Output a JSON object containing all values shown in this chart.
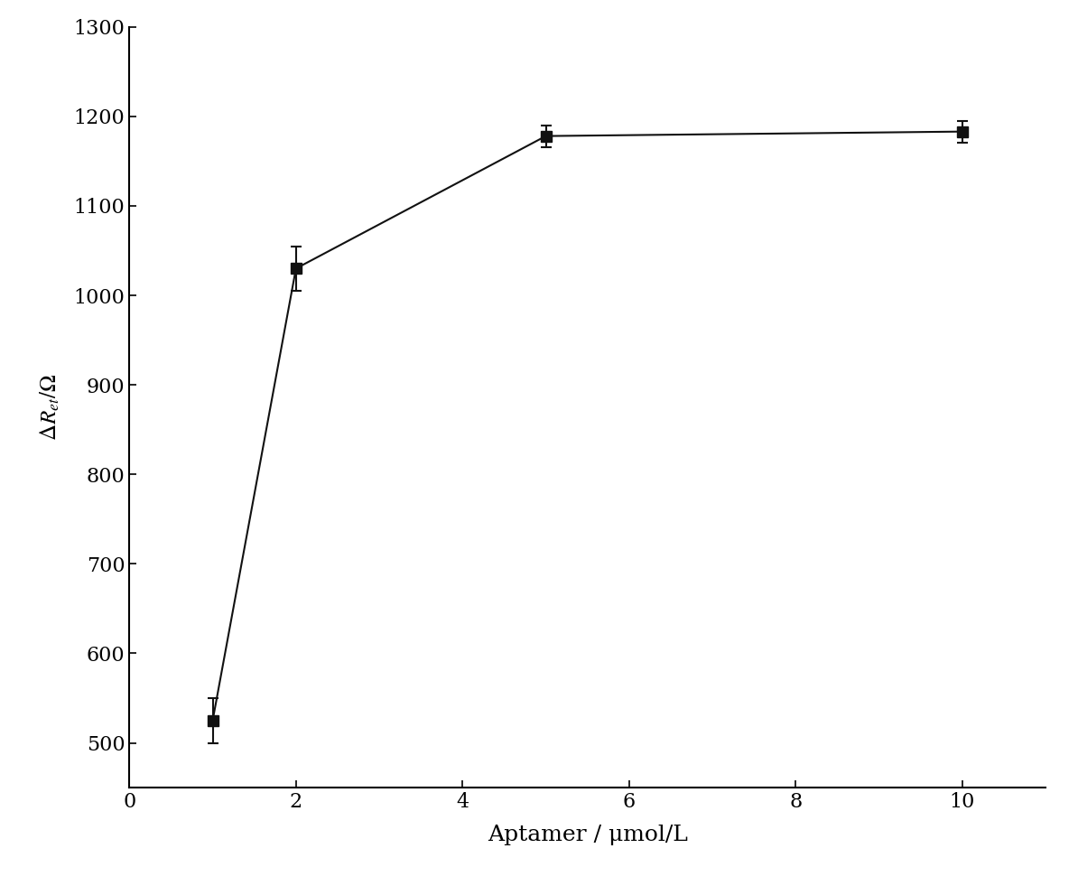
{
  "x": [
    1,
    2,
    5,
    10
  ],
  "y": [
    525,
    1030,
    1178,
    1183
  ],
  "yerr": [
    25,
    25,
    12,
    12
  ],
  "xlabel": "Aptamer / μmol/L",
  "ylabel_latex": "$\\Delta R_{et}/\\Omega$",
  "xlim": [
    0,
    11
  ],
  "ylim": [
    450,
    1300
  ],
  "xticks": [
    0,
    2,
    4,
    6,
    8,
    10
  ],
  "yticks": [
    500,
    600,
    700,
    800,
    900,
    1000,
    1100,
    1200,
    1300
  ],
  "line_color": "#1a1a1a",
  "marker_color": "#111111",
  "marker": "s",
  "marker_size": 8,
  "linewidth": 1.5,
  "capsize": 4,
  "xlabel_fontsize": 18,
  "ylabel_fontsize": 18,
  "tick_fontsize": 16,
  "background_color": "#ffffff",
  "fig_width": 11.94,
  "fig_height": 9.91,
  "dpi": 100
}
